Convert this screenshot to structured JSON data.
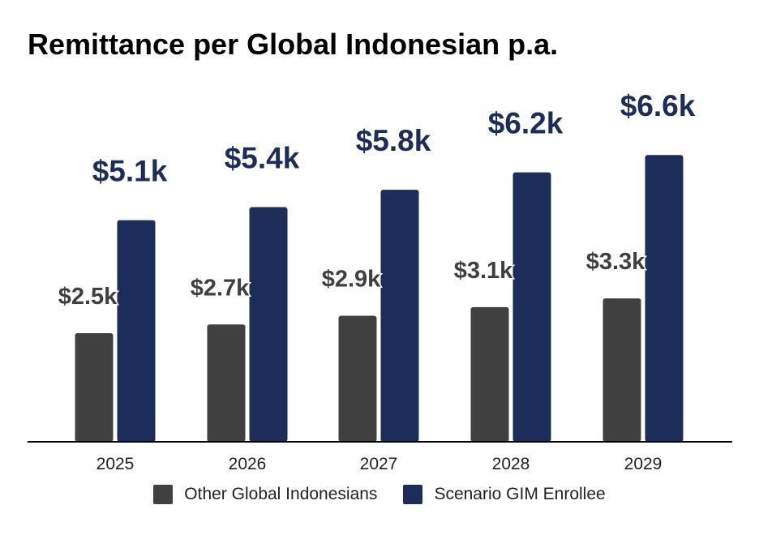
{
  "chart_data": {
    "type": "bar",
    "title": "Remittance per Global Indonesian p.a.",
    "categories": [
      "2025",
      "2026",
      "2027",
      "2028",
      "2029"
    ],
    "series": [
      {
        "name": "Other Global Indonesians",
        "color": "#404040",
        "values": [
          2.5,
          2.7,
          2.9,
          3.1,
          3.3
        ],
        "labels": [
          "$2.5k",
          "$2.7k",
          "$2.9k",
          "$3.1k",
          "$3.3k"
        ]
      },
      {
        "name": "Scenario GIM Enrollee",
        "color": "#1c2d5a",
        "values": [
          5.1,
          5.4,
          5.8,
          6.2,
          6.6
        ],
        "labels": [
          "$5.1k",
          "$5.4k",
          "$5.8k",
          "$6.2k",
          "$6.6k"
        ]
      }
    ],
    "ylim": [
      0,
      7
    ],
    "grid": false,
    "legend_position": "bottom"
  }
}
